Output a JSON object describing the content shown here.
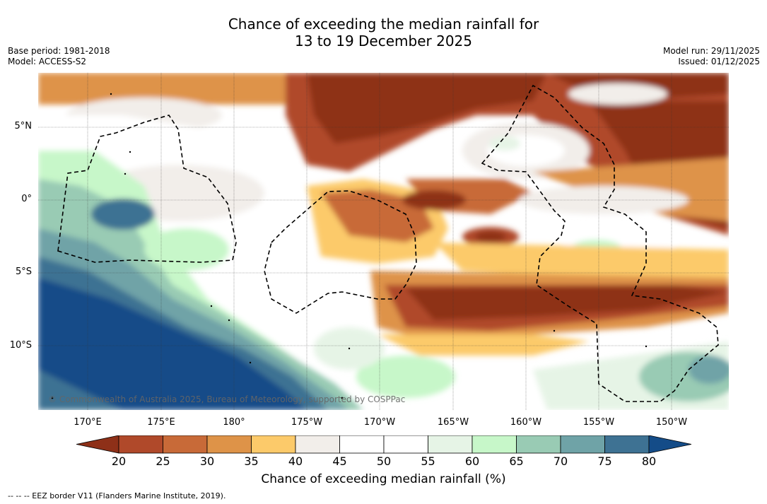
{
  "title_line1": "Chance of exceeding the median rainfall for",
  "title_line2": "13 to 19 December 2025",
  "base_period": "Base period: 1981-2018",
  "model": "Model: ACCESS-S2",
  "model_run": "Model run: 29/11/2025",
  "issued": "Issued: 01/12/2025",
  "lat_labels": [
    "5°N",
    "0°",
    "5°S",
    "10°S"
  ],
  "lon_labels": [
    "170°E",
    "175°E",
    "180°",
    "175°W",
    "170°W",
    "165°W",
    "160°W",
    "155°W",
    "150°W"
  ],
  "colorbar": {
    "title": "Chance of exceeding median rainfall (%)",
    "ticks": [
      "20",
      "25",
      "30",
      "35",
      "40",
      "45",
      "50",
      "55",
      "60",
      "65",
      "70",
      "75",
      "80"
    ],
    "colors": [
      "#8e3018",
      "#b0492a",
      "#c86a38",
      "#de9348",
      "#fcca6a",
      "#f2eeea",
      "#ffffff",
      "#ffffff",
      "#e6f4e6",
      "#c7f7c9",
      "#99cbb4",
      "#6fa3a7",
      "#3e7293",
      "#144c88"
    ]
  },
  "copyright": "© Commonwealth of Australia 2025, Bureau of Meteorology, supported by COSPPac",
  "footnote": "--  --  -- EEZ border V11 (Flanders Marine Institute, 2019)."
}
